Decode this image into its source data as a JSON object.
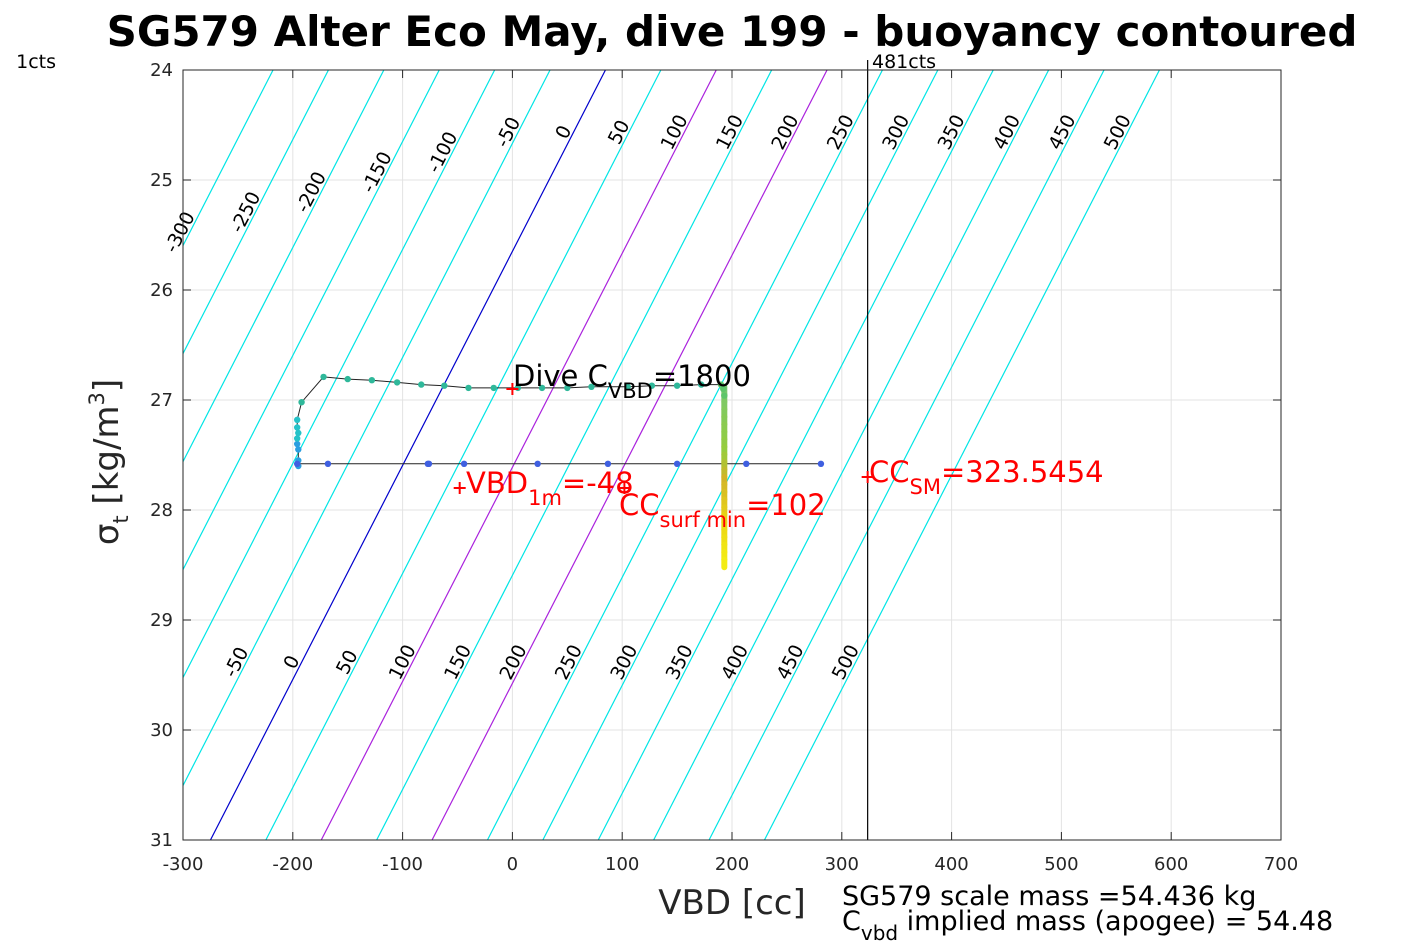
{
  "chart_data": {
    "type": "scatter",
    "title": "SG579 Alter Eco May, dive 199 - buoyancy contoured",
    "xlabel": "VBD [cc]",
    "ylabel_sym": "σ",
    "ylabel_sub": "t",
    "ylabel_unit_pre": " [kg/m",
    "ylabel_unit_sup": "3",
    "ylabel_unit_post": "]",
    "xlim": [
      -300,
      700
    ],
    "ylim": [
      24,
      31
    ],
    "y_reversed": true,
    "grid": true,
    "xticks": [
      -300,
      -200,
      -100,
      0,
      100,
      200,
      300,
      400,
      500,
      600,
      700
    ],
    "xtick_labels": [
      "-300",
      "-200",
      "-100",
      "0",
      "100",
      "200",
      "300",
      "400",
      "500",
      "600",
      "700"
    ],
    "yticks": [
      24,
      25,
      26,
      27,
      28,
      29,
      30,
      31
    ],
    "ytick_labels": [
      "24",
      "25",
      "26",
      "27",
      "28",
      "29",
      "30",
      "31"
    ],
    "contour_levels": [
      -300,
      -250,
      -200,
      -150,
      -100,
      -50,
      0,
      50,
      100,
      150,
      200,
      250,
      300,
      350,
      400,
      450,
      500
    ],
    "contour_labels_top": [
      "-300",
      "-250",
      "-200",
      "-150",
      "-100",
      "-50",
      "0",
      "50",
      "100",
      "150",
      "200",
      "250",
      "300",
      "350",
      "400",
      "450",
      "500"
    ],
    "contour_labels_bottom": [
      "-50",
      "0",
      "50",
      "100",
      "150",
      "200",
      "250",
      "300",
      "350",
      "400",
      "450",
      "500"
    ],
    "contour_colors": {
      "zero": "#0000cc",
      "highlight": "#aa22dd",
      "other": "#00e5e5"
    },
    "highlight_levels": [
      100,
      200
    ],
    "vline_x": 323.5454,
    "vline_label_left": "1cts",
    "vline_label_right": "481cts",
    "dive_points": [
      {
        "x": -195,
        "y": 27.6
      },
      {
        "x": -195,
        "y": 27.55
      },
      {
        "x": -195,
        "y": 27.45
      },
      {
        "x": -196,
        "y": 27.4
      },
      {
        "x": -196,
        "y": 27.35
      },
      {
        "x": -195,
        "y": 27.3
      },
      {
        "x": -196,
        "y": 27.25
      },
      {
        "x": -196,
        "y": 27.18
      },
      {
        "x": -192,
        "y": 27.02
      },
      {
        "x": -172,
        "y": 26.79
      },
      {
        "x": -150,
        "y": 26.81
      },
      {
        "x": -128,
        "y": 26.82
      },
      {
        "x": -105,
        "y": 26.84
      },
      {
        "x": -83,
        "y": 26.86
      },
      {
        "x": -62,
        "y": 26.87
      },
      {
        "x": -40,
        "y": 26.89
      },
      {
        "x": -17,
        "y": 26.89
      },
      {
        "x": 5,
        "y": 26.89
      },
      {
        "x": 27,
        "y": 26.89
      },
      {
        "x": 50,
        "y": 26.89
      },
      {
        "x": 72,
        "y": 26.88
      },
      {
        "x": 105,
        "y": 26.88
      },
      {
        "x": 127,
        "y": 26.87
      },
      {
        "x": 150,
        "y": 26.87
      },
      {
        "x": 172,
        "y": 26.86
      },
      {
        "x": 190,
        "y": 26.86
      },
      {
        "x": 192,
        "y": 26.9
      },
      {
        "x": 193,
        "y": 26.96
      }
    ],
    "climb_points": [
      {
        "x": 281,
        "y": 27.58
      },
      {
        "x": 213,
        "y": 27.58
      },
      {
        "x": 150,
        "y": 27.58
      },
      {
        "x": 87,
        "y": 27.58
      },
      {
        "x": 23,
        "y": 27.58
      },
      {
        "x": -44,
        "y": 27.58
      },
      {
        "x": -76,
        "y": 27.58
      },
      {
        "x": -77,
        "y": 27.58
      },
      {
        "x": -168,
        "y": 27.58
      },
      {
        "x": -196,
        "y": 27.58
      }
    ],
    "vertical_trace": {
      "x": 193,
      "y_top": 26.88,
      "y_bottom": 28.52
    },
    "markers": [
      {
        "x": 0,
        "y": 26.9
      },
      {
        "x": -48,
        "y": 27.8
      },
      {
        "x": 102,
        "y": 27.8
      },
      {
        "x": 323.5454,
        "y": 27.7
      }
    ],
    "annotations": {
      "dive_cvbd": {
        "pre": "Dive C",
        "sub": "VBD",
        "post": "=1800",
        "color": "#000000"
      },
      "vbd_1m": {
        "pre": "VBD",
        "sub": "1m",
        "post": "=-48",
        "color": "#ff0000"
      },
      "cc_surf_min": {
        "pre": "CC",
        "sub": "surf min",
        "post": "=102",
        "color": "#ff0000"
      },
      "cc_sm": {
        "pre": "CC",
        "sub": "SM",
        "post": "=323.5454",
        "color": "#ff0000"
      }
    },
    "footer": {
      "line1": "SG579 scale mass =54.436 kg",
      "line2_pre": "C",
      "line2_sub": "vbd",
      "line2_post": " implied mass (apogee) = 54.48"
    }
  }
}
